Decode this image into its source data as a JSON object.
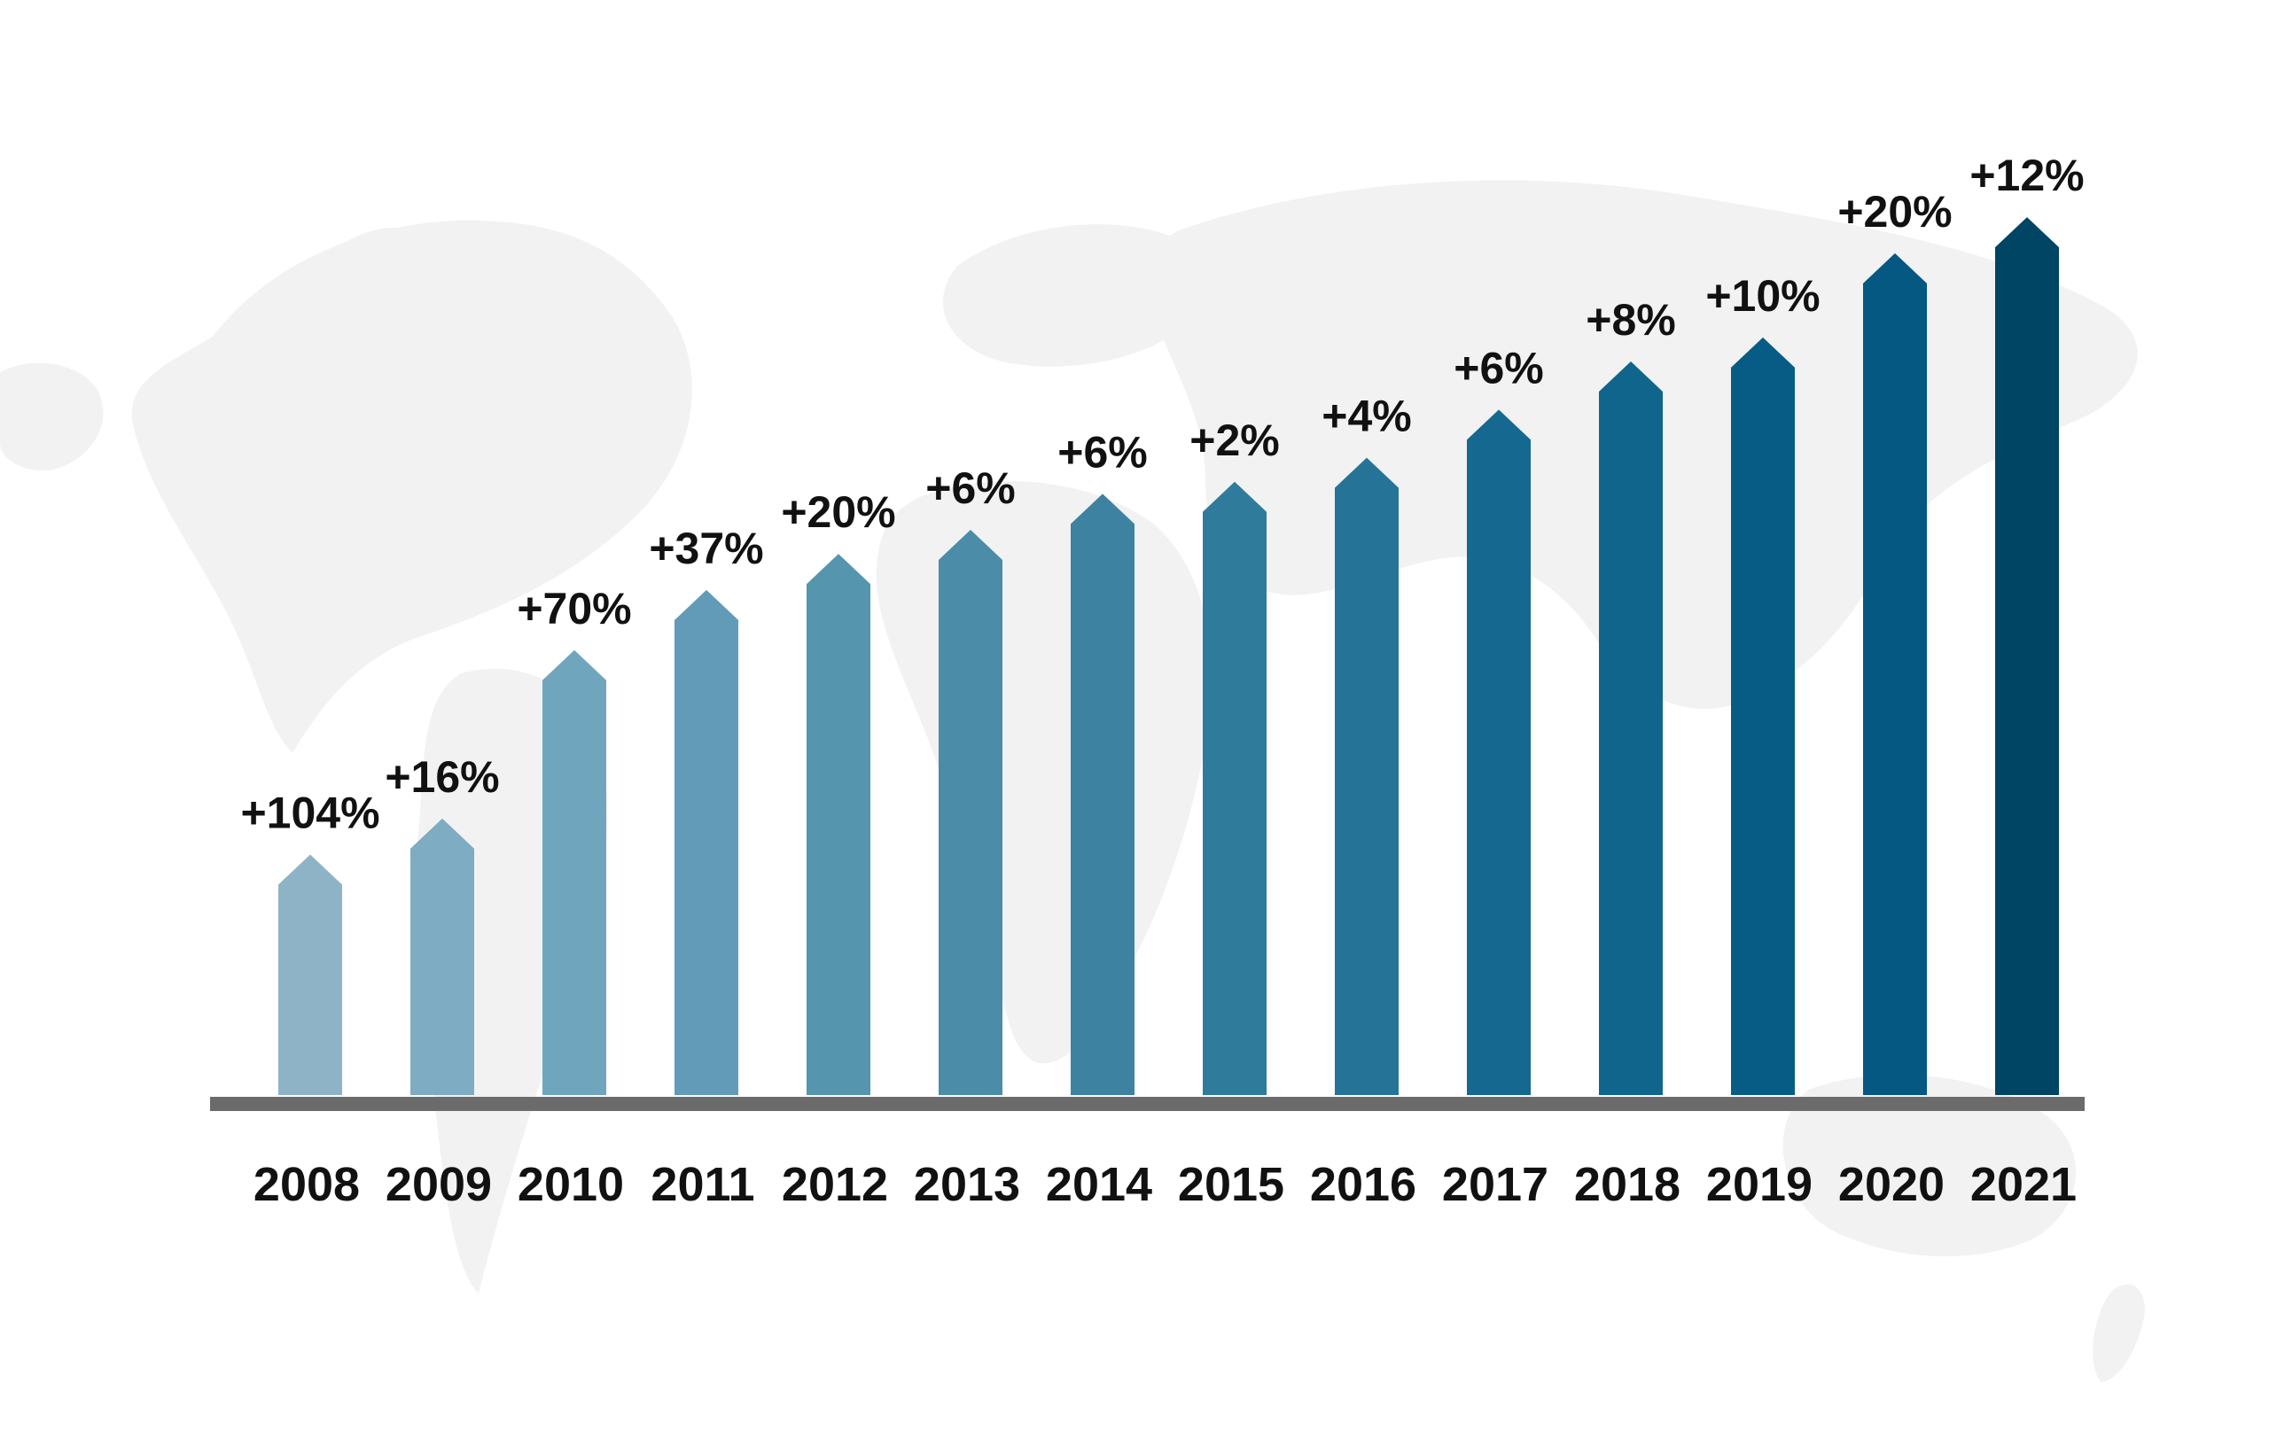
{
  "chart_data": {
    "type": "bar",
    "title": "",
    "xlabel": "",
    "ylabel": "",
    "categories": [
      "2008",
      "2009",
      "2010",
      "2011",
      "2012",
      "2013",
      "2014",
      "2015",
      "2016",
      "2017",
      "2018",
      "2019",
      "2020",
      "2021"
    ],
    "values": [
      20,
      23,
      37,
      42,
      45,
      47,
      50,
      51,
      53,
      57,
      61,
      63,
      70,
      73
    ],
    "data_labels": [
      "+104%",
      "+16%",
      "+70%",
      "+37%",
      "+20%",
      "+6%",
      "+6%",
      "+2%",
      "+4%",
      "+6%",
      "+8%",
      "+10%",
      "+20%",
      "+12%"
    ],
    "ylim": [
      0,
      75
    ],
    "grid": false,
    "legend": "none",
    "bar_shape": "arrow",
    "background": "world-map",
    "colors": [
      "#8fb3c6",
      "#7eacc2",
      "#70a6bd",
      "#629bb7",
      "#5596ae",
      "#4b8ca8",
      "#3d83a1",
      "#2f7b9c",
      "#257497",
      "#156890",
      "#0f658c",
      "#075c85",
      "#045882",
      "#004563"
    ],
    "axis_color": "#6b6b6b",
    "map_color": "#f2f2f2"
  }
}
